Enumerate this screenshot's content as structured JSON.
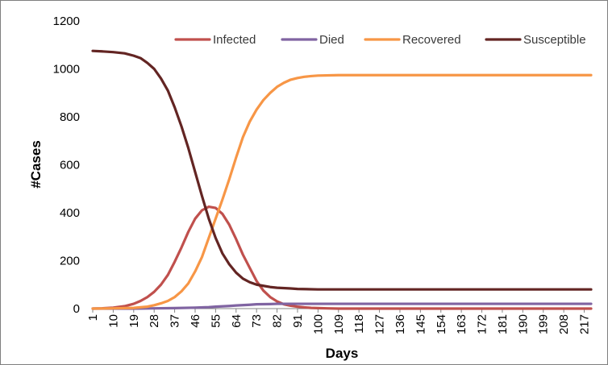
{
  "chart_data": {
    "type": "line",
    "title": "",
    "xlabel": "Days",
    "ylabel": "#Cases",
    "xlim": [
      1,
      220
    ],
    "ylim": [
      0,
      1200
    ],
    "y_ticks": [
      0,
      200,
      400,
      600,
      800,
      1000,
      1200
    ],
    "x_ticks": [
      1,
      10,
      19,
      28,
      37,
      46,
      55,
      64,
      73,
      82,
      91,
      100,
      109,
      118,
      127,
      136,
      145,
      154,
      163,
      172,
      181,
      190,
      199,
      208,
      217
    ],
    "grid": false,
    "legend_position": "top-right",
    "series": [
      {
        "name": "Infected",
        "color": "#c0504d",
        "points": [
          [
            1,
            0
          ],
          [
            5,
            1
          ],
          [
            10,
            4
          ],
          [
            15,
            10
          ],
          [
            19,
            20
          ],
          [
            22,
            32
          ],
          [
            25,
            48
          ],
          [
            28,
            70
          ],
          [
            31,
            100
          ],
          [
            34,
            140
          ],
          [
            37,
            195
          ],
          [
            40,
            255
          ],
          [
            43,
            320
          ],
          [
            46,
            375
          ],
          [
            49,
            410
          ],
          [
            52,
            425
          ],
          [
            55,
            420
          ],
          [
            58,
            395
          ],
          [
            61,
            350
          ],
          [
            64,
            290
          ],
          [
            67,
            225
          ],
          [
            70,
            170
          ],
          [
            73,
            115
          ],
          [
            76,
            75
          ],
          [
            79,
            48
          ],
          [
            82,
            30
          ],
          [
            85,
            18
          ],
          [
            88,
            12
          ],
          [
            91,
            8
          ],
          [
            94,
            5
          ],
          [
            97,
            3
          ],
          [
            100,
            2
          ],
          [
            104,
            1
          ],
          [
            109,
            0
          ],
          [
            150,
            0
          ],
          [
            220,
            0
          ]
        ]
      },
      {
        "name": "Died",
        "color": "#8064a2",
        "points": [
          [
            1,
            0
          ],
          [
            19,
            0
          ],
          [
            28,
            1
          ],
          [
            37,
            2
          ],
          [
            46,
            4
          ],
          [
            52,
            6
          ],
          [
            55,
            8
          ],
          [
            61,
            11
          ],
          [
            64,
            13
          ],
          [
            70,
            16
          ],
          [
            73,
            18
          ],
          [
            79,
            19
          ],
          [
            82,
            20
          ],
          [
            91,
            20
          ],
          [
            220,
            20
          ]
        ]
      },
      {
        "name": "Recovered",
        "color": "#f79646",
        "points": [
          [
            1,
            0
          ],
          [
            10,
            1
          ],
          [
            19,
            3
          ],
          [
            25,
            8
          ],
          [
            28,
            14
          ],
          [
            31,
            22
          ],
          [
            34,
            32
          ],
          [
            37,
            48
          ],
          [
            40,
            72
          ],
          [
            43,
            105
          ],
          [
            46,
            155
          ],
          [
            49,
            215
          ],
          [
            52,
            295
          ],
          [
            55,
            375
          ],
          [
            58,
            455
          ],
          [
            61,
            540
          ],
          [
            64,
            630
          ],
          [
            67,
            715
          ],
          [
            70,
            780
          ],
          [
            73,
            830
          ],
          [
            76,
            870
          ],
          [
            79,
            900
          ],
          [
            82,
            925
          ],
          [
            85,
            942
          ],
          [
            88,
            955
          ],
          [
            91,
            962
          ],
          [
            94,
            967
          ],
          [
            97,
            970
          ],
          [
            100,
            972
          ],
          [
            109,
            974
          ],
          [
            150,
            974
          ],
          [
            220,
            974
          ]
        ]
      },
      {
        "name": "Susceptible",
        "color": "#632523",
        "points": [
          [
            1,
            1075
          ],
          [
            5,
            1073
          ],
          [
            10,
            1070
          ],
          [
            15,
            1065
          ],
          [
            19,
            1055
          ],
          [
            22,
            1045
          ],
          [
            25,
            1025
          ],
          [
            28,
            1000
          ],
          [
            31,
            960
          ],
          [
            34,
            910
          ],
          [
            37,
            840
          ],
          [
            40,
            760
          ],
          [
            43,
            670
          ],
          [
            46,
            570
          ],
          [
            49,
            470
          ],
          [
            52,
            375
          ],
          [
            55,
            295
          ],
          [
            58,
            230
          ],
          [
            61,
            185
          ],
          [
            64,
            150
          ],
          [
            67,
            125
          ],
          [
            70,
            110
          ],
          [
            73,
            100
          ],
          [
            76,
            95
          ],
          [
            79,
            90
          ],
          [
            82,
            87
          ],
          [
            88,
            84
          ],
          [
            91,
            82
          ],
          [
            100,
            80
          ],
          [
            220,
            80
          ]
        ]
      }
    ]
  }
}
